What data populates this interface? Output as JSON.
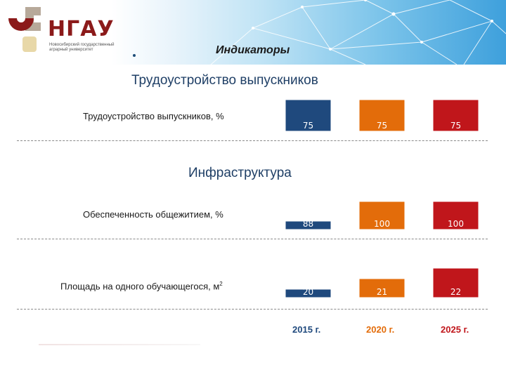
{
  "header": {
    "logo_text": "НГАУ",
    "logo_subtitle": "Новосибирский государственный аграрный университет",
    "slide_subtitle": "Индикаторы"
  },
  "sections": {
    "employment_title": "Трудоустройство выпускников",
    "infrastructure_title": "Инфраструктура"
  },
  "rows": {
    "employment": {
      "label": "Трудоустройство выпускников, %"
    },
    "dormitory": {
      "label": "Обеспеченность общежитием, %"
    },
    "area": {
      "label": "Площадь на одного обучающегося, м",
      "unit_superscript": "2"
    }
  },
  "colors": {
    "y2015": "#1f497d",
    "y2020": "#e36c0a",
    "y2025": "#c0161b",
    "title": "#1f3f66"
  },
  "chart_data": [
    {
      "type": "bar",
      "title": "Трудоустройство выпускников, %",
      "categories": [
        "2015 г.",
        "2020 г.",
        "2025 г."
      ],
      "values": [
        75,
        75,
        75
      ],
      "ylim": [
        0,
        75
      ]
    },
    {
      "type": "bar",
      "title": "Обеспеченность общежитием, %",
      "categories": [
        "2015 г.",
        "2020 г.",
        "2025 г."
      ],
      "values": [
        88,
        100,
        100
      ],
      "ylim": [
        84,
        100
      ]
    },
    {
      "type": "bar",
      "title": "Площадь на одного обучающегося, м2",
      "categories": [
        "2015 г.",
        "2020 г.",
        "2025 г."
      ],
      "values": [
        20,
        21,
        22
      ],
      "ylim": [
        19.2,
        22
      ]
    }
  ],
  "years": [
    "2015 г.",
    "2020 г.",
    "2025 г."
  ]
}
